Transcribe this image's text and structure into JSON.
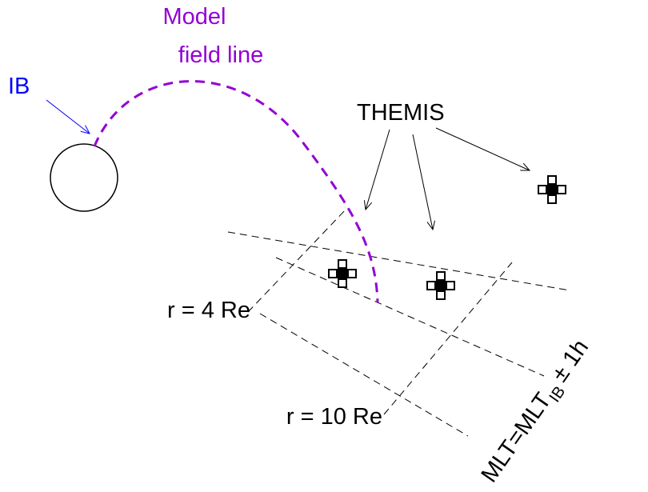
{
  "labels": {
    "field_line": [
      "Model",
      "field line"
    ],
    "ib": "IB",
    "themis": "THEMIS",
    "r4": "r = 4 Re",
    "r10": "r = 10 Re",
    "mlt": {
      "main": "MLT=MLT",
      "subscript": "IB",
      "suffix": "± 1h"
    }
  }
}
